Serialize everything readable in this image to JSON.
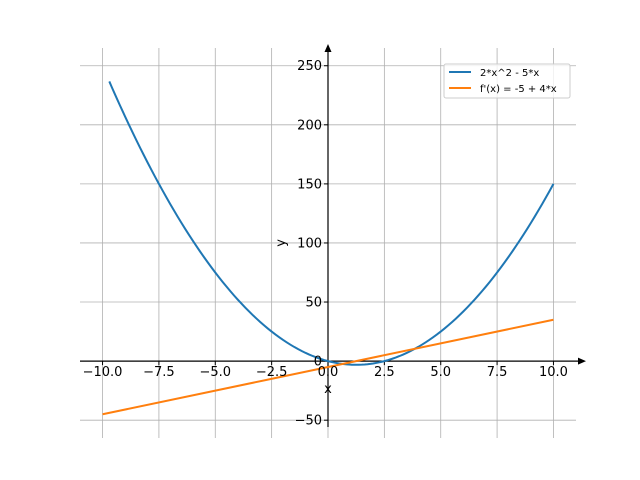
{
  "chart_data": {
    "type": "line",
    "title": "",
    "xlabel": "x",
    "ylabel": "y",
    "xlim": [
      -11,
      11
    ],
    "ylim": [
      -60,
      265
    ],
    "grid": true,
    "legend_position": "top-right",
    "x_ticks": [
      -10.0,
      -7.5,
      -5.0,
      -2.5,
      0.0,
      2.5,
      5.0,
      7.5,
      10.0
    ],
    "x_tick_labels": [
      "−10.0",
      "−7.5",
      "−5.0",
      "−2.5",
      "0.0",
      "2.5",
      "5.0",
      "7.5",
      "10.0"
    ],
    "y_ticks": [
      -50,
      0,
      50,
      100,
      150,
      200,
      250
    ],
    "y_tick_labels": [
      "−50",
      "0",
      "50",
      "100",
      "150",
      "200",
      "250"
    ],
    "series": [
      {
        "name": "2*x^2 - 5*x",
        "color": "#1f77b4",
        "x": [
          -9.7,
          -9,
          -8,
          -7,
          -6,
          -5,
          -4,
          -3,
          -2,
          -1,
          0,
          1,
          1.25,
          2,
          3,
          4,
          5,
          6,
          7,
          8,
          9,
          10
        ],
        "y": [
          236.68,
          207,
          168,
          133,
          102,
          75,
          52,
          33,
          18,
          7,
          0,
          -3,
          -3.125,
          -2,
          3,
          12,
          25,
          42,
          63,
          88,
          117,
          150
        ]
      },
      {
        "name": "f'(x) = -5 + 4*x",
        "color": "#ff7f0e",
        "x": [
          -10,
          10
        ],
        "y": [
          -45,
          35
        ]
      }
    ]
  }
}
